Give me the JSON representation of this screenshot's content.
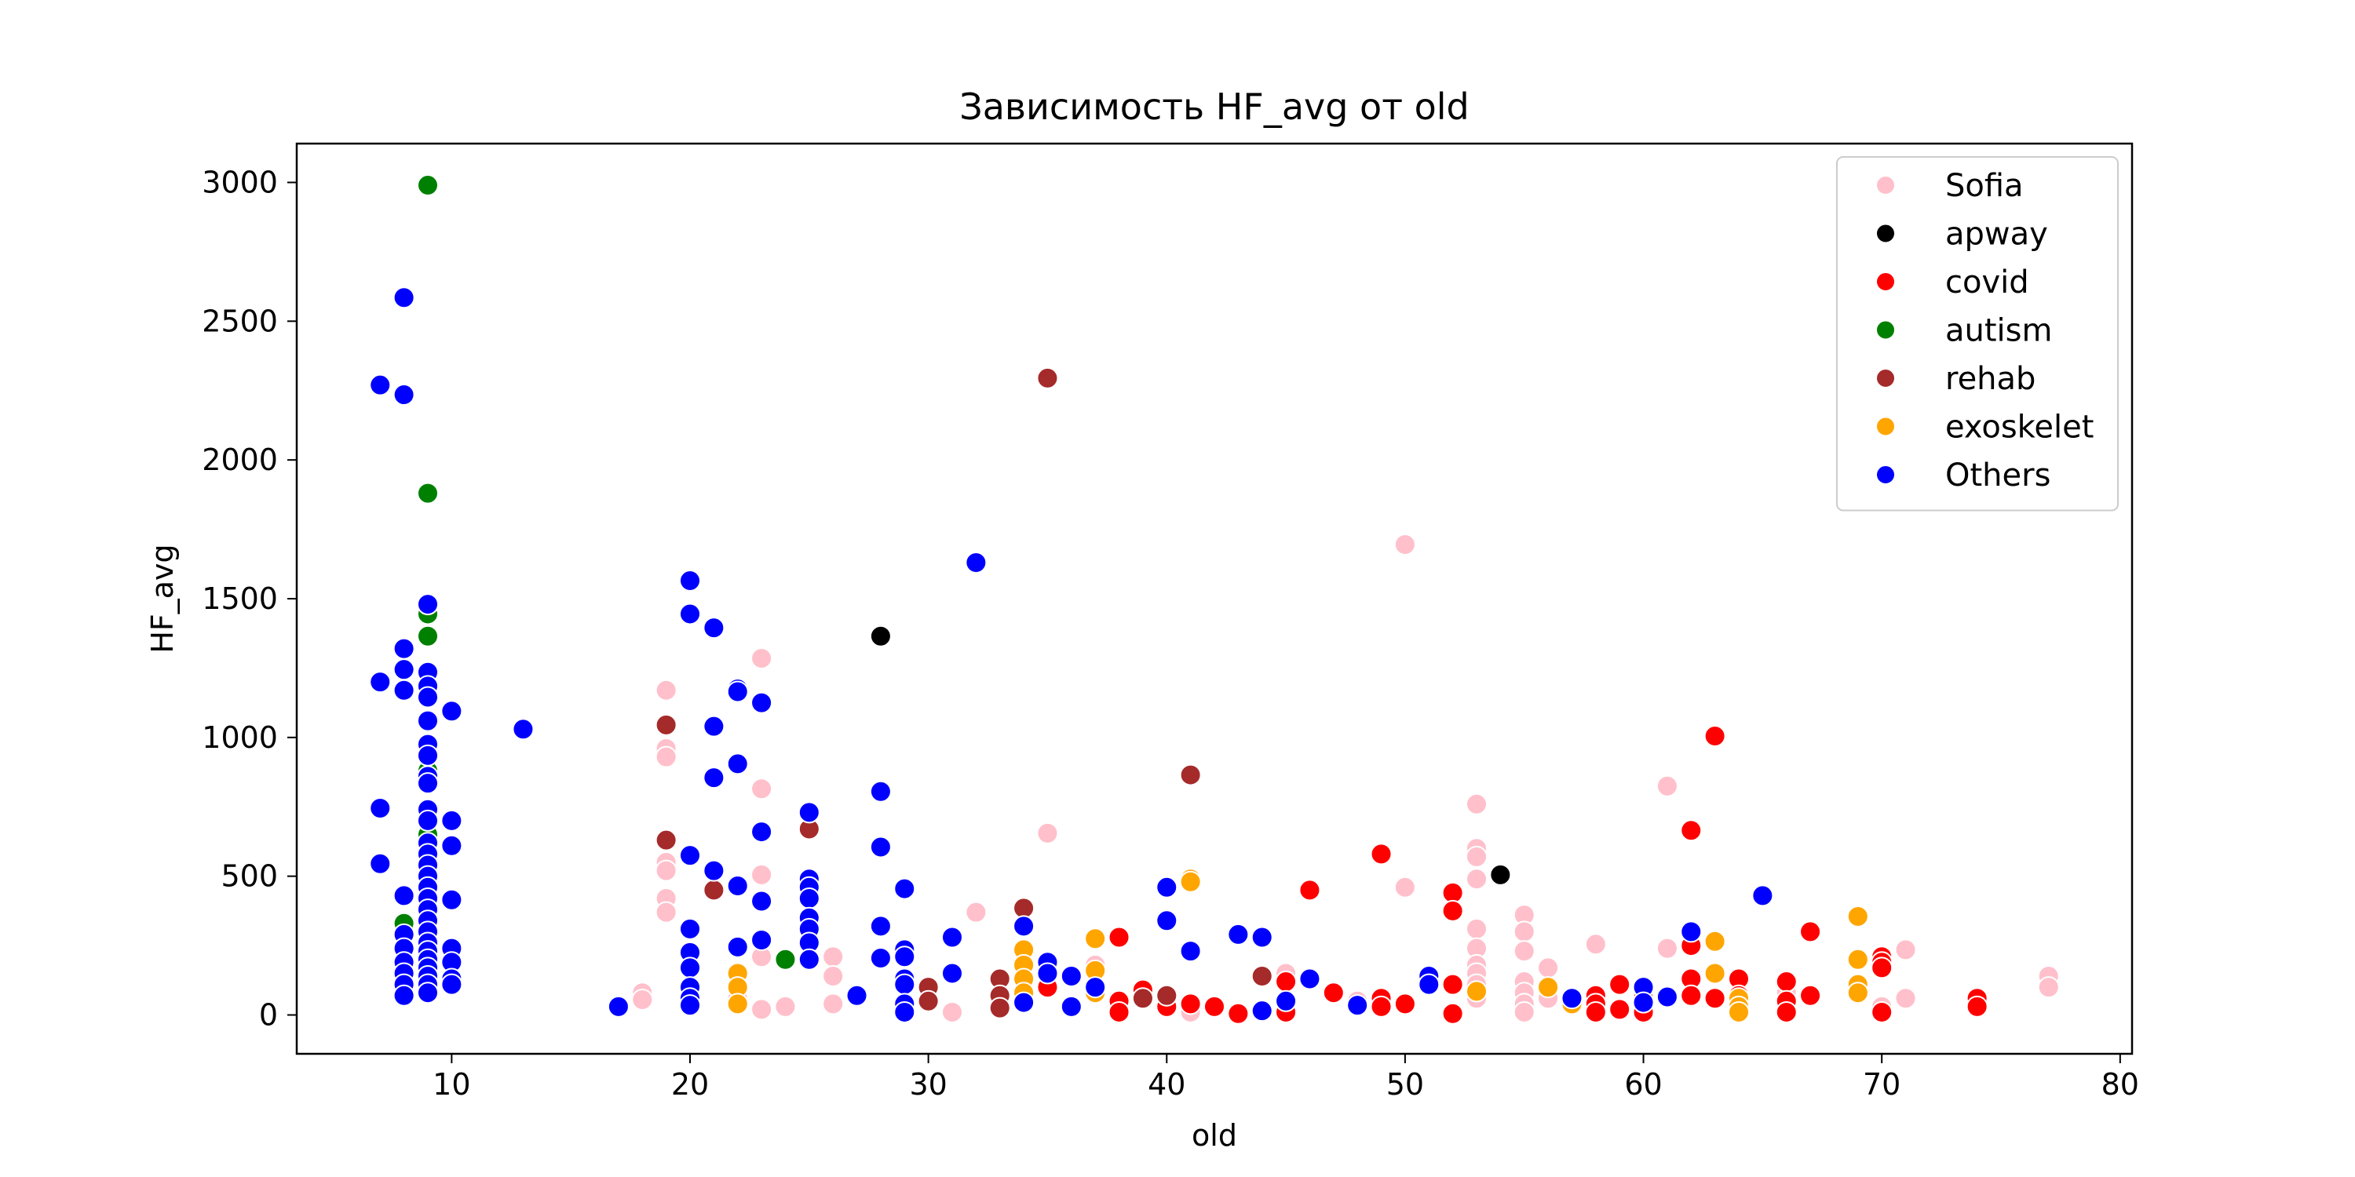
{
  "chart_data": {
    "type": "scatter",
    "title": "Зависимость HF_avg от old",
    "xlabel": "old",
    "ylabel": "HF_avg",
    "xlim": [
      3.5,
      80.5
    ],
    "ylim": [
      -140,
      3140
    ],
    "xticks": [
      10,
      20,
      30,
      40,
      50,
      60,
      70,
      80
    ],
    "yticks": [
      0,
      500,
      1000,
      1500,
      2000,
      2500,
      3000
    ],
    "grid": false,
    "legend_position": "top-right",
    "series": [
      {
        "name": "Sofia",
        "color": "#ffc0cb",
        "points": [
          [
            18,
            80
          ],
          [
            18,
            55
          ],
          [
            19,
            1170
          ],
          [
            19,
            960
          ],
          [
            19,
            930
          ],
          [
            19,
            550
          ],
          [
            19,
            520
          ],
          [
            19,
            420
          ],
          [
            19,
            370
          ],
          [
            20,
            100
          ],
          [
            22,
            60
          ],
          [
            23,
            1285
          ],
          [
            23,
            815
          ],
          [
            23,
            505
          ],
          [
            23,
            210
          ],
          [
            23,
            20
          ],
          [
            24,
            30
          ],
          [
            26,
            210
          ],
          [
            26,
            140
          ],
          [
            26,
            40
          ],
          [
            30,
            60
          ],
          [
            31,
            10
          ],
          [
            32,
            370
          ],
          [
            35,
            655
          ],
          [
            37,
            180
          ],
          [
            41,
            10
          ],
          [
            45,
            150
          ],
          [
            48,
            50
          ],
          [
            50,
            1695
          ],
          [
            50,
            460
          ],
          [
            53,
            760
          ],
          [
            53,
            600
          ],
          [
            53,
            570
          ],
          [
            53,
            490
          ],
          [
            53,
            310
          ],
          [
            53,
            240
          ],
          [
            53,
            180
          ],
          [
            53,
            150
          ],
          [
            53,
            110
          ],
          [
            53,
            60
          ],
          [
            55,
            360
          ],
          [
            55,
            300
          ],
          [
            55,
            230
          ],
          [
            55,
            120
          ],
          [
            55,
            80
          ],
          [
            55,
            40
          ],
          [
            55,
            10
          ],
          [
            56,
            170
          ],
          [
            56,
            60
          ],
          [
            58,
            255
          ],
          [
            58,
            20
          ],
          [
            61,
            825
          ],
          [
            61,
            240
          ],
          [
            66,
            80
          ],
          [
            70,
            30
          ],
          [
            71,
            235
          ],
          [
            71,
            60
          ],
          [
            77,
            140
          ],
          [
            77,
            100
          ]
        ]
      },
      {
        "name": "apway",
        "color": "#000000",
        "points": [
          [
            28,
            1365
          ],
          [
            54,
            505
          ]
        ]
      },
      {
        "name": "covid",
        "color": "#ff0000",
        "points": [
          [
            35,
            100
          ],
          [
            38,
            280
          ],
          [
            38,
            50
          ],
          [
            38,
            10
          ],
          [
            39,
            90
          ],
          [
            40,
            30
          ],
          [
            41,
            40
          ],
          [
            42,
            30
          ],
          [
            43,
            5
          ],
          [
            45,
            120
          ],
          [
            45,
            10
          ],
          [
            46,
            450
          ],
          [
            47,
            80
          ],
          [
            49,
            580
          ],
          [
            49,
            60
          ],
          [
            49,
            30
          ],
          [
            50,
            40
          ],
          [
            52,
            440
          ],
          [
            52,
            375
          ],
          [
            52,
            110
          ],
          [
            52,
            5
          ],
          [
            58,
            70
          ],
          [
            58,
            40
          ],
          [
            58,
            10
          ],
          [
            59,
            110
          ],
          [
            59,
            20
          ],
          [
            60,
            60
          ],
          [
            60,
            10
          ],
          [
            62,
            665
          ],
          [
            62,
            250
          ],
          [
            62,
            130
          ],
          [
            62,
            70
          ],
          [
            63,
            1005
          ],
          [
            63,
            60
          ],
          [
            64,
            130
          ],
          [
            64,
            70
          ],
          [
            66,
            120
          ],
          [
            66,
            50
          ],
          [
            66,
            10
          ],
          [
            67,
            300
          ],
          [
            67,
            70
          ],
          [
            70,
            210
          ],
          [
            70,
            190
          ],
          [
            70,
            170
          ],
          [
            70,
            10
          ],
          [
            74,
            60
          ],
          [
            74,
            30
          ]
        ]
      },
      {
        "name": "autism",
        "color": "#008000",
        "points": [
          [
            9,
            2990
          ],
          [
            9,
            1880
          ],
          [
            9,
            1445
          ],
          [
            9,
            1365
          ],
          [
            9,
            880
          ],
          [
            9,
            650
          ],
          [
            8,
            330
          ],
          [
            9,
            210
          ],
          [
            24,
            200
          ]
        ]
      },
      {
        "name": "rehab",
        "color": "#a52a2a",
        "points": [
          [
            19,
            1045
          ],
          [
            19,
            630
          ],
          [
            21,
            450
          ],
          [
            25,
            670
          ],
          [
            30,
            100
          ],
          [
            30,
            50
          ],
          [
            33,
            130
          ],
          [
            33,
            70
          ],
          [
            33,
            25
          ],
          [
            34,
            385
          ],
          [
            35,
            2295
          ],
          [
            39,
            60
          ],
          [
            40,
            70
          ],
          [
            41,
            865
          ],
          [
            44,
            140
          ]
        ]
      },
      {
        "name": "exoskelet",
        "color": "#ffa500",
        "points": [
          [
            22,
            150
          ],
          [
            22,
            100
          ],
          [
            22,
            40
          ],
          [
            34,
            235
          ],
          [
            34,
            180
          ],
          [
            34,
            130
          ],
          [
            34,
            80
          ],
          [
            34,
            40
          ],
          [
            37,
            275
          ],
          [
            37,
            160
          ],
          [
            37,
            80
          ],
          [
            41,
            490
          ],
          [
            41,
            480
          ],
          [
            53,
            85
          ],
          [
            56,
            100
          ],
          [
            57,
            40
          ],
          [
            63,
            265
          ],
          [
            63,
            150
          ],
          [
            64,
            60
          ],
          [
            64,
            30
          ],
          [
            64,
            10
          ],
          [
            69,
            355
          ],
          [
            69,
            200
          ],
          [
            69,
            110
          ],
          [
            69,
            80
          ]
        ]
      },
      {
        "name": "Others",
        "color": "#0000ff",
        "points": [
          [
            7,
            2270
          ],
          [
            7,
            1200
          ],
          [
            7,
            745
          ],
          [
            7,
            545
          ],
          [
            8,
            2585
          ],
          [
            8,
            2235
          ],
          [
            8,
            1320
          ],
          [
            8,
            1245
          ],
          [
            8,
            1170
          ],
          [
            8,
            430
          ],
          [
            8,
            290
          ],
          [
            8,
            240
          ],
          [
            8,
            190
          ],
          [
            8,
            150
          ],
          [
            8,
            110
          ],
          [
            8,
            70
          ],
          [
            9,
            1480
          ],
          [
            9,
            1235
          ],
          [
            9,
            1185
          ],
          [
            9,
            1145
          ],
          [
            9,
            1060
          ],
          [
            9,
            975
          ],
          [
            9,
            935
          ],
          [
            9,
            860
          ],
          [
            9,
            835
          ],
          [
            9,
            740
          ],
          [
            9,
            700
          ],
          [
            9,
            620
          ],
          [
            9,
            580
          ],
          [
            9,
            540
          ],
          [
            9,
            500
          ],
          [
            9,
            460
          ],
          [
            9,
            420
          ],
          [
            9,
            380
          ],
          [
            9,
            340
          ],
          [
            9,
            300
          ],
          [
            9,
            260
          ],
          [
            9,
            230
          ],
          [
            9,
            200
          ],
          [
            9,
            170
          ],
          [
            9,
            140
          ],
          [
            9,
            110
          ],
          [
            9,
            80
          ],
          [
            10,
            1095
          ],
          [
            10,
            700
          ],
          [
            10,
            610
          ],
          [
            10,
            415
          ],
          [
            10,
            240
          ],
          [
            10,
            190
          ],
          [
            10,
            130
          ],
          [
            10,
            110
          ],
          [
            13,
            1030
          ],
          [
            17,
            30
          ],
          [
            20,
            1565
          ],
          [
            20,
            1445
          ],
          [
            20,
            575
          ],
          [
            20,
            310
          ],
          [
            20,
            225
          ],
          [
            20,
            170
          ],
          [
            20,
            100
          ],
          [
            20,
            60
          ],
          [
            20,
            35
          ],
          [
            21,
            1395
          ],
          [
            21,
            1040
          ],
          [
            21,
            855
          ],
          [
            21,
            520
          ],
          [
            22,
            1175
          ],
          [
            22,
            1165
          ],
          [
            22,
            905
          ],
          [
            22,
            465
          ],
          [
            22,
            245
          ],
          [
            23,
            1125
          ],
          [
            23,
            660
          ],
          [
            23,
            410
          ],
          [
            23,
            270
          ],
          [
            25,
            730
          ],
          [
            25,
            490
          ],
          [
            25,
            460
          ],
          [
            25,
            420
          ],
          [
            25,
            350
          ],
          [
            25,
            310
          ],
          [
            25,
            260
          ],
          [
            25,
            200
          ],
          [
            27,
            70
          ],
          [
            28,
            805
          ],
          [
            28,
            605
          ],
          [
            28,
            320
          ],
          [
            28,
            205
          ],
          [
            29,
            455
          ],
          [
            29,
            235
          ],
          [
            29,
            210
          ],
          [
            29,
            130
          ],
          [
            29,
            110
          ],
          [
            29,
            40
          ],
          [
            29,
            10
          ],
          [
            31,
            280
          ],
          [
            31,
            150
          ],
          [
            32,
            1630
          ],
          [
            34,
            320
          ],
          [
            34,
            45
          ],
          [
            35,
            190
          ],
          [
            35,
            150
          ],
          [
            36,
            140
          ],
          [
            36,
            30
          ],
          [
            37,
            100
          ],
          [
            40,
            460
          ],
          [
            40,
            340
          ],
          [
            41,
            230
          ],
          [
            43,
            290
          ],
          [
            44,
            280
          ],
          [
            44,
            15
          ],
          [
            45,
            50
          ],
          [
            46,
            130
          ],
          [
            48,
            35
          ],
          [
            51,
            140
          ],
          [
            51,
            110
          ],
          [
            57,
            60
          ],
          [
            60,
            100
          ],
          [
            60,
            45
          ],
          [
            61,
            65
          ],
          [
            62,
            300
          ],
          [
            65,
            430
          ]
        ]
      }
    ]
  }
}
